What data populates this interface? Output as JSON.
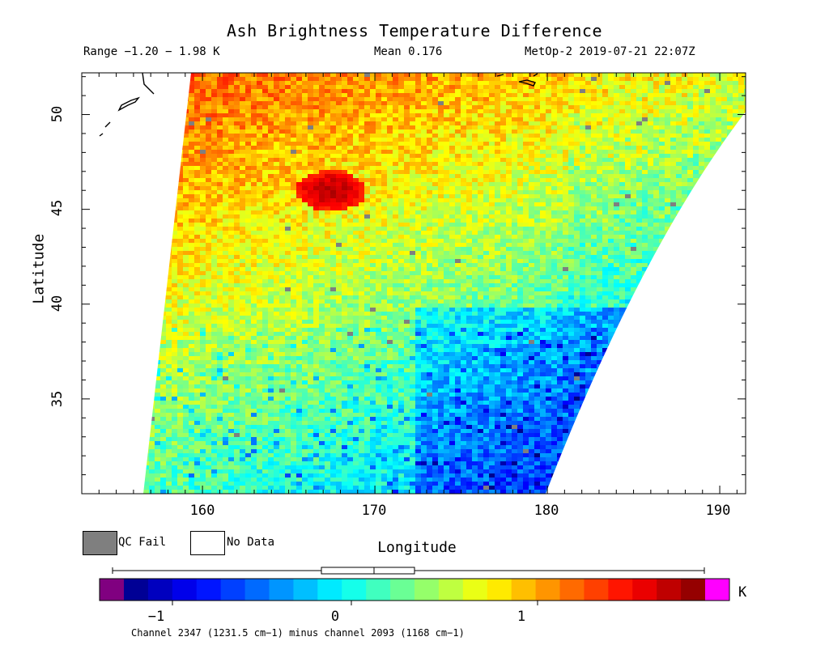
{
  "title": "Ash Brightness Temperature Difference",
  "subtitle": {
    "range": "Range −1.20 − 1.98 K",
    "mean": "Mean 0.176",
    "satellite": "MetOp-2 2019-07-21 22:07Z"
  },
  "axes": {
    "x_label": "Longitude",
    "y_label": "Latitude",
    "x_ticks": [
      "160",
      "170",
      "180",
      "190"
    ],
    "y_ticks": [
      "50",
      "45",
      "40",
      "35"
    ]
  },
  "legend": {
    "qc_fail": "QC Fail",
    "no_data": "No Data",
    "qc_fail_color": "#7f7f7f",
    "no_data_color": "#ffffff"
  },
  "colorbar": {
    "unit": "K",
    "ticks": [
      "−1",
      "0",
      "1"
    ],
    "low_color": "#800080",
    "high_color": "#ff00ff",
    "caption": "Channel 2347 (1231.5 cm−1) minus channel 2093 (1168 cm−1)"
  },
  "map": {
    "lon_range": [
      153,
      191.5
    ],
    "lat_range": [
      30,
      52.2
    ],
    "ash_plume_center": {
      "lon": 167,
      "lat": 46
    }
  }
}
